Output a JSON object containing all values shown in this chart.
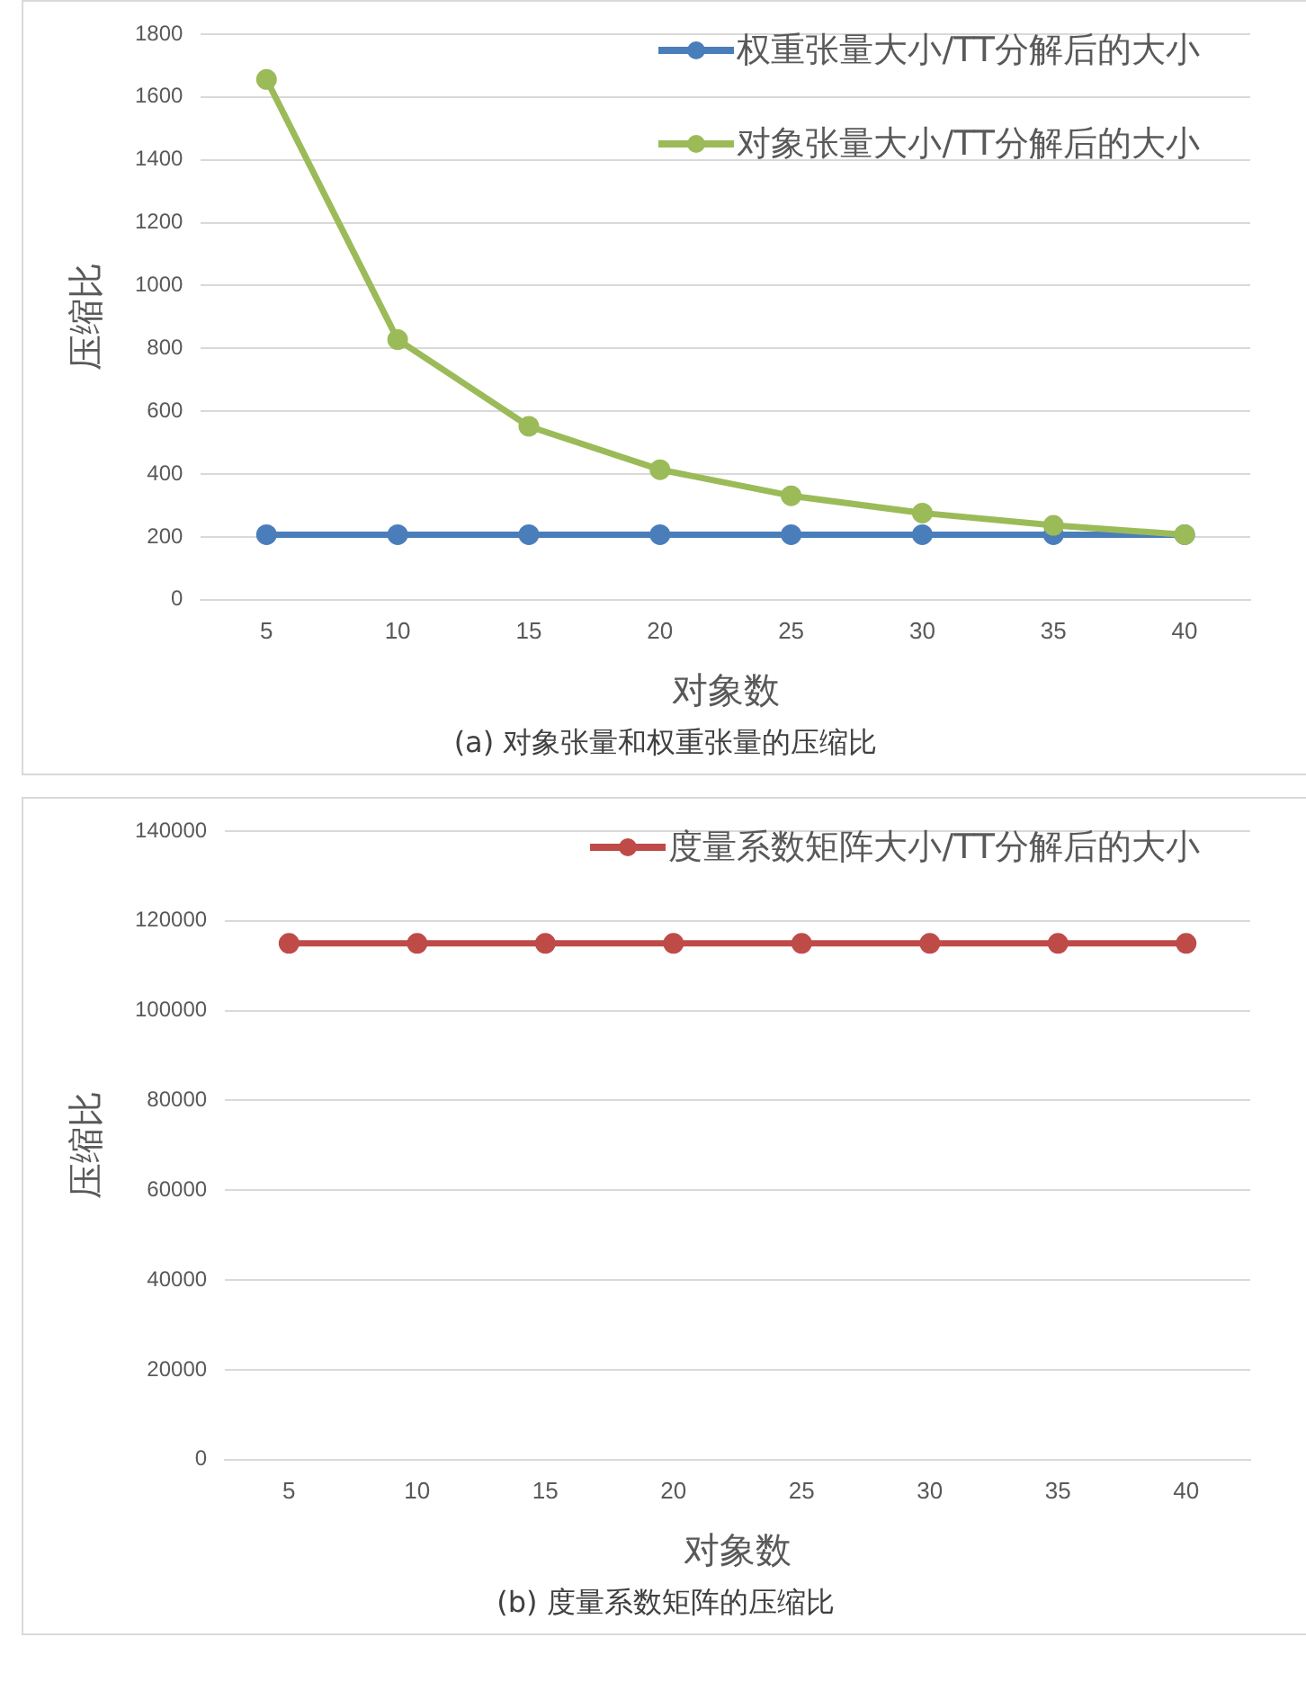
{
  "chart_data": [
    {
      "type": "line",
      "xlabel": "对象数",
      "ylabel": "压缩比",
      "annotations": [
        "(a) 对象张量和权重张量的压缩比"
      ],
      "categories": [
        "5",
        "10",
        "15",
        "20",
        "25",
        "30",
        "35",
        "40"
      ],
      "series": [
        {
          "name": "权重张量大小/TT分解后的大小",
          "color": "#4a7ebb",
          "values": [
            207,
            207,
            207,
            207,
            207,
            207,
            207,
            207
          ]
        },
        {
          "name": "对象张量大小/TT分解后的大小",
          "color": "#9bbb59",
          "values": [
            1656,
            828,
            552,
            414,
            331,
            276,
            237,
            207
          ]
        }
      ],
      "ylim": [
        0,
        1800
      ],
      "yticks": [
        0,
        200,
        400,
        600,
        800,
        1000,
        1200,
        1400,
        1600,
        1800
      ],
      "grid": "y",
      "legend": "top right",
      "marker": "circle",
      "line_style": "solid"
    },
    {
      "type": "line",
      "xlabel": "对象数",
      "ylabel": "压缩比",
      "annotations": [
        "(b) 度量系数矩阵的压缩比"
      ],
      "categories": [
        "5",
        "10",
        "15",
        "20",
        "25",
        "30",
        "35",
        "40"
      ],
      "series": [
        {
          "name": "度量系数矩阵大小/TT分解后的大小",
          "color": "#be4b48",
          "values": [
            115000,
            115000,
            115000,
            115000,
            115000,
            115000,
            115000,
            115000
          ]
        }
      ],
      "ylim": [
        0,
        140000
      ],
      "yticks": [
        0,
        20000,
        40000,
        60000,
        80000,
        100000,
        120000,
        140000
      ],
      "grid": "y",
      "legend": "top right",
      "marker": "circle",
      "line_style": "solid"
    }
  ]
}
